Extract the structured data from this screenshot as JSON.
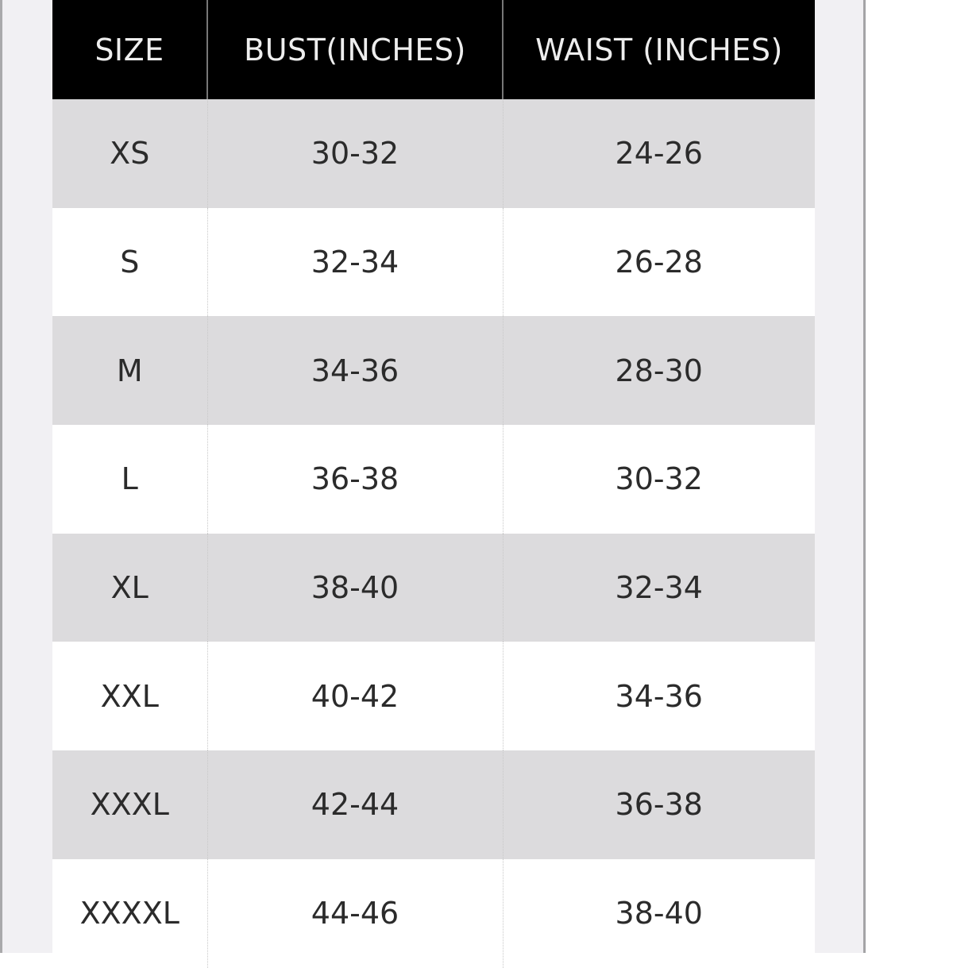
{
  "headers": [
    "SIZE",
    "BUST(INCHES)",
    "WAIST (INCHES)"
  ],
  "rows": [
    {
      "size": "XS",
      "bust": "30-32",
      "waist": "24-26"
    },
    {
      "size": "S",
      "bust": "32-34",
      "waist": "26-28"
    },
    {
      "size": "M",
      "bust": "34-36",
      "waist": "28-30"
    },
    {
      "size": "L",
      "bust": "36-38",
      "waist": "30-32"
    },
    {
      "size": "XL",
      "bust": "38-40",
      "waist": "32-34"
    },
    {
      "size": "XXL",
      "bust": "40-42",
      "waist": "34-36"
    },
    {
      "size": "XXXL",
      "bust": "42-44",
      "waist": "36-38"
    },
    {
      "size": "XXXXL",
      "bust": "44-46",
      "waist": "38-40"
    }
  ],
  "colors": {
    "header_bg": "#000000",
    "stripe": "#dcdbdd",
    "panel": "#f1f0f3"
  }
}
